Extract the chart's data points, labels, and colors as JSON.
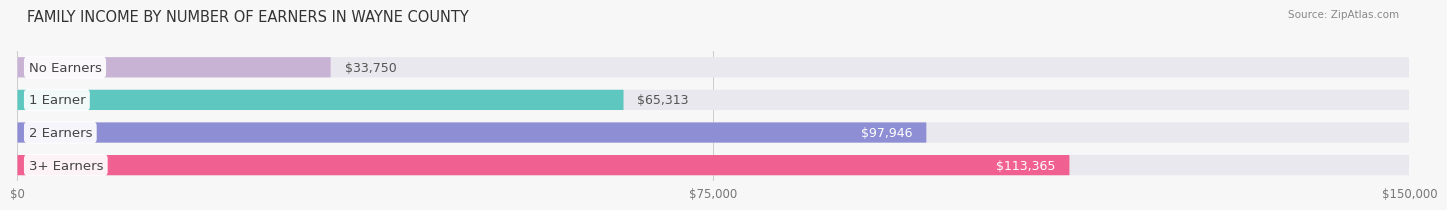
{
  "title": "FAMILY INCOME BY NUMBER OF EARNERS IN WAYNE COUNTY",
  "source": "Source: ZipAtlas.com",
  "categories": [
    "No Earners",
    "1 Earner",
    "2 Earners",
    "3+ Earners"
  ],
  "values": [
    33750,
    65313,
    97946,
    113365
  ],
  "bar_colors": [
    "#c9b3d5",
    "#5ec8c0",
    "#8e8ed4",
    "#f06090"
  ],
  "bar_bg_color": "#e8e8ee",
  "value_labels": [
    "$33,750",
    "$65,313",
    "$97,946",
    "$113,365"
  ],
  "value_label_inside": [
    false,
    false,
    true,
    true
  ],
  "xlim": [
    0,
    150000
  ],
  "xticks": [
    0,
    75000,
    150000
  ],
  "xtick_labels": [
    "$0",
    "$75,000",
    "$150,000"
  ],
  "background_color": "#f7f7f7",
  "bar_height": 0.62,
  "bar_gap": 0.38,
  "label_fontsize": 9.5,
  "title_fontsize": 10.5,
  "value_fontsize": 9.0
}
